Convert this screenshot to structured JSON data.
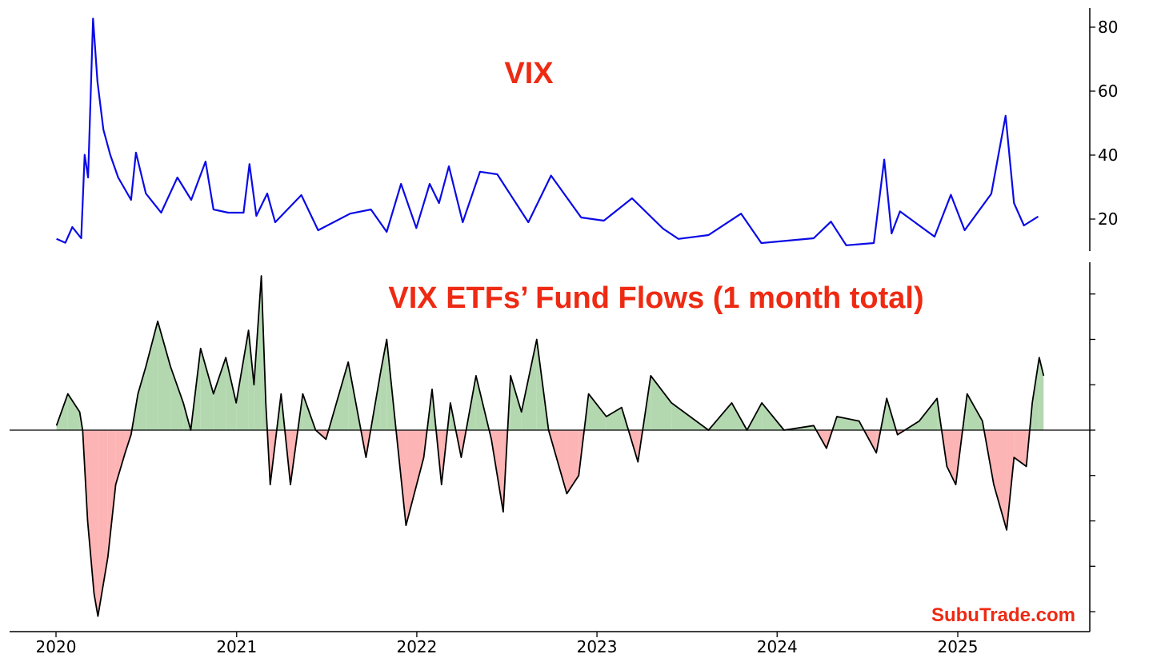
{
  "colors": {
    "vix_line": "#0a0ae6",
    "positive_fill": "#b3d8b0",
    "negative_fill": "#fcb4b4",
    "flow_line": "#000000",
    "title_red": "#ee2a13"
  },
  "watermark": "SubuTrade.com",
  "chart_data": [
    {
      "type": "line",
      "title": "VIX",
      "ylabel": "",
      "y_axis_side": "right",
      "ylim": [
        10,
        86
      ],
      "yticks": [
        20,
        40,
        60,
        80
      ],
      "ytick_labels": [
        "20",
        "40",
        "60",
        "80"
      ],
      "grid": false,
      "series": [
        {
          "points": [
            [
              "2020-01-02",
              13.8
            ],
            [
              "2020-01-20",
              12.6
            ],
            [
              "2020-02-03",
              17.5
            ],
            [
              "2020-02-21",
              14.0
            ],
            [
              "2020-02-28",
              40.1
            ],
            [
              "2020-03-06",
              33.0
            ],
            [
              "2020-03-16",
              82.7
            ],
            [
              "2020-03-25",
              63.0
            ],
            [
              "2020-04-06",
              48.0
            ],
            [
              "2020-04-20",
              40.0
            ],
            [
              "2020-05-06",
              33.0
            ],
            [
              "2020-06-01",
              26.0
            ],
            [
              "2020-06-11",
              40.8
            ],
            [
              "2020-07-01",
              28.0
            ],
            [
              "2020-08-01",
              22.0
            ],
            [
              "2020-09-03",
              33.0
            ],
            [
              "2020-10-01",
              26.0
            ],
            [
              "2020-10-30",
              38.0
            ],
            [
              "2020-11-15",
              23.0
            ],
            [
              "2020-12-15",
              22.0
            ],
            [
              "2021-01-15",
              22.0
            ],
            [
              "2021-01-27",
              37.2
            ],
            [
              "2021-02-10",
              21.0
            ],
            [
              "2021-03-04",
              28.0
            ],
            [
              "2021-03-20",
              19.0
            ],
            [
              "2021-05-12",
              27.5
            ],
            [
              "2021-06-15",
              16.5
            ],
            [
              "2021-08-19",
              21.7
            ],
            [
              "2021-09-30",
              23.0
            ],
            [
              "2021-11-01",
              16.0
            ],
            [
              "2021-11-30",
              31.0
            ],
            [
              "2021-12-31",
              17.2
            ],
            [
              "2022-01-27",
              31.0
            ],
            [
              "2022-02-15",
              25.0
            ],
            [
              "2022-03-07",
              36.5
            ],
            [
              "2022-04-04",
              19.0
            ],
            [
              "2022-05-09",
              34.8
            ],
            [
              "2022-06-13",
              34.0
            ],
            [
              "2022-08-15",
              19.0
            ],
            [
              "2022-09-30",
              33.6
            ],
            [
              "2022-11-30",
              20.5
            ],
            [
              "2023-01-15",
              19.5
            ],
            [
              "2023-03-13",
              26.5
            ],
            [
              "2023-05-15",
              17.0
            ],
            [
              "2023-06-15",
              13.8
            ],
            [
              "2023-08-15",
              15.0
            ],
            [
              "2023-10-20",
              21.7
            ],
            [
              "2023-11-30",
              12.5
            ],
            [
              "2024-03-15",
              14.0
            ],
            [
              "2024-04-19",
              19.2
            ],
            [
              "2024-05-20",
              11.8
            ],
            [
              "2024-07-15",
              12.5
            ],
            [
              "2024-08-05",
              38.6
            ],
            [
              "2024-08-20",
              15.5
            ],
            [
              "2024-09-06",
              22.4
            ],
            [
              "2024-11-15",
              14.5
            ],
            [
              "2024-12-18",
              27.6
            ],
            [
              "2025-01-15",
              16.5
            ],
            [
              "2025-03-10",
              27.9
            ],
            [
              "2025-04-08",
              52.3
            ],
            [
              "2025-04-25",
              25.0
            ],
            [
              "2025-05-15",
              18.0
            ],
            [
              "2025-06-13",
              20.8
            ]
          ]
        }
      ]
    },
    {
      "type": "area",
      "title": "VIX ETFs’ Fund Flows (1 month total)",
      "ylabel": "",
      "y_axis_side": "right",
      "ylim": [
        -0.222,
        0.185
      ],
      "yticks": [
        -0.2,
        -0.15,
        -0.1,
        -0.05,
        0,
        0.05,
        0.1,
        0.15
      ],
      "ytick_labels": [],
      "zero_line": true,
      "grid": false,
      "xticks": [
        "2020-01-01",
        "2021-01-01",
        "2022-01-01",
        "2023-01-01",
        "2024-01-01",
        "2025-01-01"
      ],
      "xtick_labels": [
        "2020",
        "2021",
        "2022",
        "2023",
        "2024",
        "2025"
      ],
      "fill_positive": "green",
      "fill_negative": "red",
      "series": [
        {
          "points": [
            [
              "2020-01-02",
              0.005
            ],
            [
              "2020-01-25",
              0.04
            ],
            [
              "2020-02-18",
              0.02
            ],
            [
              "2020-02-24",
              0.0
            ],
            [
              "2020-03-05",
              -0.1
            ],
            [
              "2020-03-18",
              -0.18
            ],
            [
              "2020-03-26",
              -0.205
            ],
            [
              "2020-04-15",
              -0.14
            ],
            [
              "2020-05-01",
              -0.06
            ],
            [
              "2020-05-20",
              -0.025
            ],
            [
              "2020-06-01",
              -0.005
            ],
            [
              "2020-06-15",
              0.04
            ],
            [
              "2020-07-01",
              0.07
            ],
            [
              "2020-07-25",
              0.12
            ],
            [
              "2020-08-20",
              0.07
            ],
            [
              "2020-09-15",
              0.03
            ],
            [
              "2020-09-30",
              0.0
            ],
            [
              "2020-10-20",
              0.09
            ],
            [
              "2020-11-15",
              0.04
            ],
            [
              "2020-12-10",
              0.08
            ],
            [
              "2020-12-31",
              0.03
            ],
            [
              "2021-01-25",
              0.11
            ],
            [
              "2021-02-05",
              0.05
            ],
            [
              "2021-02-20",
              0.17
            ],
            [
              "2021-03-01",
              0.03
            ],
            [
              "2021-03-10",
              -0.06
            ],
            [
              "2021-04-01",
              0.04
            ],
            [
              "2021-04-20",
              -0.06
            ],
            [
              "2021-05-15",
              0.04
            ],
            [
              "2021-06-10",
              0.0
            ],
            [
              "2021-07-01",
              -0.01
            ],
            [
              "2021-08-15",
              0.075
            ],
            [
              "2021-09-20",
              -0.03
            ],
            [
              "2021-10-20",
              0.065
            ],
            [
              "2021-11-01",
              0.1
            ],
            [
              "2021-11-20",
              0.0
            ],
            [
              "2021-12-10",
              -0.105
            ],
            [
              "2022-01-15",
              -0.03
            ],
            [
              "2022-02-01",
              0.045
            ],
            [
              "2022-02-20",
              -0.06
            ],
            [
              "2022-03-10",
              0.03
            ],
            [
              "2022-04-01",
              -0.03
            ],
            [
              "2022-05-01",
              0.06
            ],
            [
              "2022-06-01",
              -0.01
            ],
            [
              "2022-06-25",
              -0.09
            ],
            [
              "2022-07-10",
              0.06
            ],
            [
              "2022-08-01",
              0.02
            ],
            [
              "2022-09-01",
              0.1
            ],
            [
              "2022-09-25",
              0.0
            ],
            [
              "2022-11-01",
              -0.07
            ],
            [
              "2022-11-25",
              -0.05
            ],
            [
              "2022-12-15",
              0.04
            ],
            [
              "2023-01-20",
              0.015
            ],
            [
              "2023-02-20",
              0.025
            ],
            [
              "2023-03-25",
              -0.035
            ],
            [
              "2023-04-20",
              0.06
            ],
            [
              "2023-06-01",
              0.03
            ],
            [
              "2023-08-15",
              0.0
            ],
            [
              "2023-10-01",
              0.03
            ],
            [
              "2023-11-01",
              0.0
            ],
            [
              "2023-12-01",
              0.03
            ],
            [
              "2024-01-15",
              0.0
            ],
            [
              "2024-03-15",
              0.005
            ],
            [
              "2024-04-10",
              -0.02
            ],
            [
              "2024-05-01",
              0.015
            ],
            [
              "2024-06-15",
              0.01
            ],
            [
              "2024-07-20",
              -0.025
            ],
            [
              "2024-08-10",
              0.035
            ],
            [
              "2024-09-01",
              -0.005
            ],
            [
              "2024-10-15",
              0.01
            ],
            [
              "2024-11-20",
              0.035
            ],
            [
              "2024-12-10",
              -0.04
            ],
            [
              "2024-12-28",
              -0.06
            ],
            [
              "2025-01-20",
              0.04
            ],
            [
              "2025-02-20",
              0.01
            ],
            [
              "2025-03-15",
              -0.06
            ],
            [
              "2025-04-10",
              -0.11
            ],
            [
              "2025-04-25",
              -0.03
            ],
            [
              "2025-05-20",
              -0.04
            ],
            [
              "2025-06-01",
              0.03
            ],
            [
              "2025-06-15",
              0.08
            ],
            [
              "2025-06-24",
              0.06
            ]
          ]
        }
      ]
    }
  ]
}
